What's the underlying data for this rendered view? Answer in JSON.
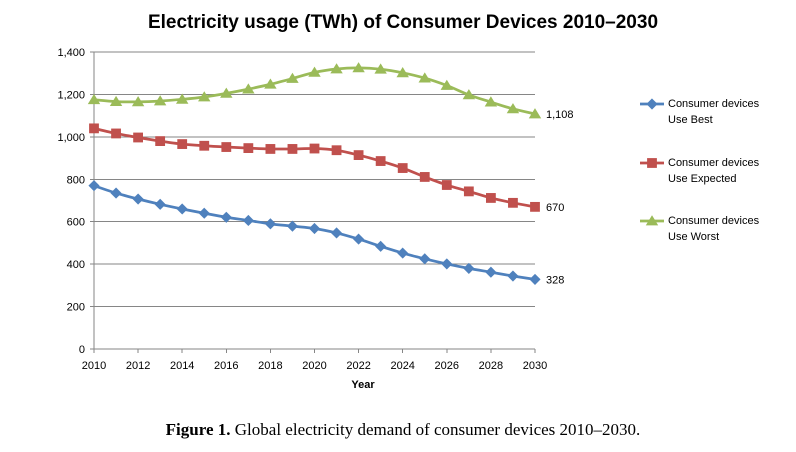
{
  "chart_data": {
    "type": "line",
    "title": "Electricity usage (TWh) of Consumer Devices 2010–2030",
    "xlabel": "Year",
    "x": [
      2010,
      2011,
      2012,
      2013,
      2014,
      2015,
      2016,
      2017,
      2018,
      2019,
      2020,
      2021,
      2022,
      2023,
      2024,
      2025,
      2026,
      2027,
      2028,
      2029,
      2030
    ],
    "xlim": [
      2010,
      2030
    ],
    "x_tick_labels": [
      "2010",
      "2012",
      "2014",
      "2016",
      "2018",
      "2020",
      "2022",
      "2024",
      "2026",
      "2028",
      "2030"
    ],
    "ylim": [
      0,
      1400
    ],
    "y_ticks": [
      0,
      200,
      400,
      600,
      800,
      1000,
      1200,
      1400
    ],
    "y_tick_labels": [
      "0",
      "200",
      "400",
      "600",
      "800",
      "1,000",
      "1,200",
      "1,400"
    ],
    "grid": "horizontal",
    "legend": "right",
    "smooth": true,
    "series": [
      {
        "name": "Consumer devices Use Best",
        "color": "#4F81BD",
        "marker": "diamond",
        "values": [
          770,
          735,
          707,
          682,
          660,
          640,
          621,
          606,
          590,
          579,
          568,
          547,
          518,
          484,
          452,
          425,
          401,
          380,
          362,
          344,
          328
        ],
        "end_label": "328"
      },
      {
        "name": "Consumer devices Use Expected",
        "color": "#C0504D",
        "marker": "square",
        "values": [
          1040,
          1016,
          997,
          980,
          966,
          958,
          952,
          947,
          943,
          943,
          945,
          937,
          914,
          886,
          853,
          811,
          773,
          743,
          712,
          689,
          670
        ],
        "end_label": "670"
      },
      {
        "name": "Consumer devices Use Worst",
        "color": "#9BBB59",
        "marker": "triangle",
        "values": [
          1175,
          1166,
          1165,
          1169,
          1177,
          1188,
          1205,
          1225,
          1248,
          1275,
          1304,
          1320,
          1325,
          1319,
          1302,
          1277,
          1242,
          1198,
          1164,
          1132,
          1108
        ],
        "end_label": "1,108"
      }
    ]
  },
  "caption": {
    "label": "Figure 1.",
    "text": "Global electricity demand of consumer devices 2010–2030."
  }
}
